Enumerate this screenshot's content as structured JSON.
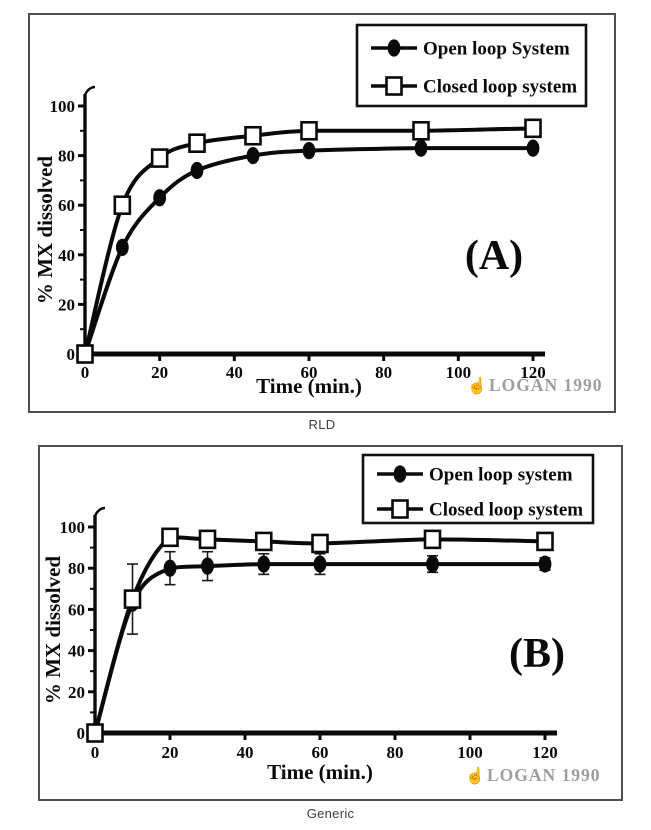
{
  "colors": {
    "ink": "#0a0a0a",
    "frame_border": "#4f4f4f",
    "watermark": "#9e9e9e",
    "watermark_icon": "#b3b3b3",
    "caption": "#3d3d3d",
    "legend_border": "#111111"
  },
  "watermark_icon_glyph": "☝",
  "chart_data": [
    {
      "type": "line",
      "panel_label": "(A)",
      "caption": "RLD",
      "watermark": "LOGAN 1990",
      "title": "",
      "xlabel": "Time (min.)",
      "ylabel": "% MX dissolved",
      "xlim": [
        0,
        120
      ],
      "ylim": [
        0,
        100
      ],
      "x_ticks": [
        0,
        20,
        40,
        60,
        80,
        100,
        120
      ],
      "y_ticks": [
        0,
        20,
        40,
        60,
        80,
        100
      ],
      "y_minor_step": 10,
      "grid": false,
      "legend_position": "top-right",
      "x": [
        0,
        10,
        20,
        30,
        45,
        60,
        90,
        120
      ],
      "series": [
        {
          "name": "Open loop System",
          "marker": "filled-circle",
          "values": [
            0,
            43,
            63,
            74,
            80,
            82,
            83,
            83
          ]
        },
        {
          "name": "Closed loop system",
          "marker": "open-square",
          "values": [
            0,
            60,
            79,
            85,
            88,
            90,
            90,
            91
          ]
        }
      ]
    },
    {
      "type": "line",
      "panel_label": "(B)",
      "caption": "Generic",
      "watermark": "LOGAN 1990",
      "title": "",
      "xlabel": "Time (min.)",
      "ylabel": "% MX dissolved",
      "xlim": [
        0,
        120
      ],
      "ylim": [
        0,
        100
      ],
      "x_ticks": [
        0,
        20,
        40,
        60,
        80,
        100,
        120
      ],
      "y_ticks": [
        0,
        20,
        40,
        60,
        80,
        100
      ],
      "y_minor_step": 10,
      "grid": false,
      "legend_position": "top-right",
      "x": [
        0,
        10,
        20,
        30,
        45,
        60,
        90,
        120
      ],
      "series": [
        {
          "name": "Open loop system",
          "marker": "filled-circle",
          "values": [
            0,
            63,
            80,
            81,
            82,
            82,
            82,
            82
          ],
          "errors": [
            0,
            0,
            8,
            7,
            5,
            5,
            4,
            3
          ]
        },
        {
          "name": "Closed loop system",
          "marker": "open-square",
          "values": [
            0,
            65,
            95,
            94,
            93,
            92,
            94,
            93
          ],
          "errors": [
            0,
            17,
            3,
            3,
            2,
            2,
            2,
            2
          ]
        }
      ]
    }
  ]
}
